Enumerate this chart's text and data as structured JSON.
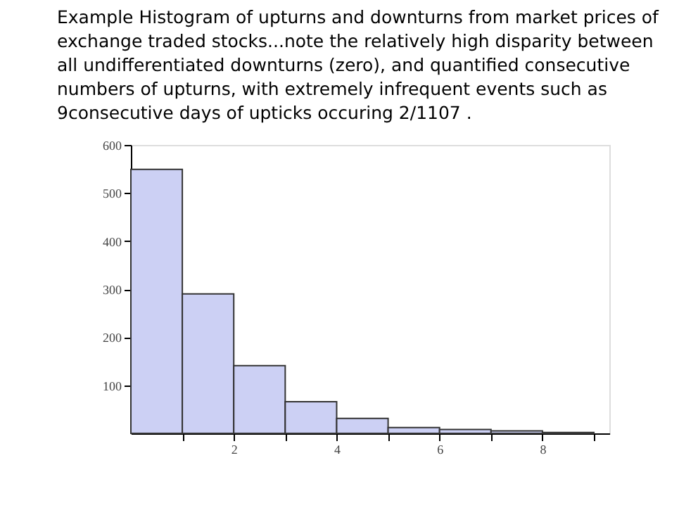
{
  "chart_data": {
    "type": "histogram",
    "title": "Example Histogram of upturns and downturns from market prices of exchange traded stocks...note the relatively high disparity between all undifferentiated downturns (zero), and quantified consecutive numbers of upturns, with extremely infrequent events such as 9consecutive days of upticks occuring 2/1107 .",
    "bins": [
      0,
      1,
      2,
      3,
      4,
      5,
      6,
      7,
      8,
      9
    ],
    "values": [
      549,
      290,
      141,
      66,
      31,
      12,
      8,
      5,
      2
    ],
    "color": "#ccd0f4",
    "xlim": [
      0,
      9.3
    ],
    "xticks": [
      {
        "value": 1,
        "label": null
      },
      2,
      {
        "value": 3,
        "label": null
      },
      4,
      {
        "value": 5,
        "label": null
      },
      6,
      {
        "value": 7,
        "label": null
      },
      8,
      {
        "value": 9,
        "label": null
      }
    ],
    "ylim": [
      0,
      600
    ],
    "yticks": [
      100,
      200,
      300,
      400,
      500,
      600
    ],
    "grid": false
  }
}
